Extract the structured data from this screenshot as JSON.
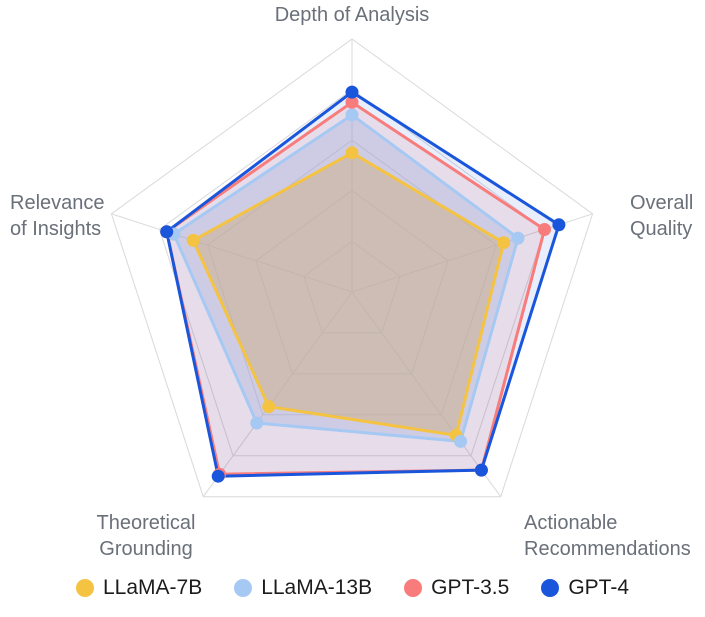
{
  "chart_data": {
    "type": "radar",
    "title": "",
    "categories": [
      "Depth of Analysis",
      "Overall Quality",
      "Actionable Recommendations",
      "Theoretical Grounding",
      "Relevance of Insights"
    ],
    "axis_labels": {
      "top": "Depth of Analysis",
      "right": "Overall\nQuality",
      "bottom_right": "Actionable\nRecommendations",
      "bottom_left": "Theoretical\nGrounding",
      "left": "Relevance\nof Insights"
    },
    "max": 10,
    "rings": 5,
    "grid_color": "#d9d9d9",
    "legend_position": "bottom",
    "series": [
      {
        "name": "LLaMA-7B",
        "color": "#F5C342",
        "fill_opacity": 0.5,
        "values": [
          5.5,
          6.3,
          7.0,
          5.6,
          6.6
        ]
      },
      {
        "name": "LLaMA-13B",
        "color": "#A6C9F4",
        "fill_opacity": 0.35,
        "values": [
          7.0,
          6.9,
          7.3,
          6.4,
          7.4
        ]
      },
      {
        "name": "GPT-3.5",
        "color": "#F87C7C",
        "fill_opacity": 0.15,
        "values": [
          7.5,
          8.0,
          8.7,
          8.9,
          7.7
        ]
      },
      {
        "name": "GPT-4",
        "color": "#1A56DB",
        "fill_opacity": 0.1,
        "values": [
          7.9,
          8.6,
          8.7,
          9.0,
          7.7
        ]
      }
    ]
  }
}
